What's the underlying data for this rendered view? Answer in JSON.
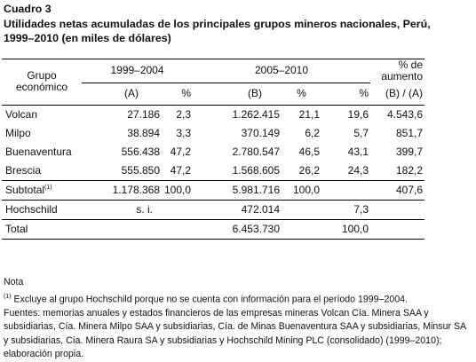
{
  "label": "Cuadro 3",
  "title": "Utilidades netas acumuladas de los principales grupos mineros nacionales, Perú, 1999–2010 (en miles de dólares)",
  "table": {
    "group_header": "Grupo económico",
    "periods": [
      "1999–2004",
      "2005–2010"
    ],
    "increase_header": "% de aumento",
    "columns": [
      "(A)",
      "%",
      "(B)",
      "%",
      "%",
      "(B) / (A)"
    ],
    "rows": [
      {
        "label": "Volcan",
        "cells": [
          "27.186",
          "2,3",
          "1.262.415",
          "21,1",
          "19,6",
          "4.543,6"
        ]
      },
      {
        "label": "Milpo",
        "cells": [
          "38.894",
          "3,3",
          "370.149",
          "6,2",
          "5,7",
          "851,7"
        ]
      },
      {
        "label": "Buenaventura",
        "cells": [
          "556.438",
          "47,2",
          "2.780.547",
          "46,5",
          "43,1",
          "399,7"
        ]
      },
      {
        "label": "Brescia",
        "cells": [
          "555.850",
          "47,2",
          "1.568.605",
          "26,2",
          "24,3",
          "182,2"
        ]
      },
      {
        "label": "Subtotal",
        "ref": "(1)",
        "cells": [
          "1.178.368",
          "100,0",
          "5.981.716",
          "100,0",
          null,
          "407,6"
        ]
      },
      {
        "label": "Hochschild",
        "cells": [
          "s. i.",
          null,
          "472.014",
          null,
          "7,3",
          null
        ]
      },
      {
        "label": "Total",
        "cells": [
          null,
          null,
          "6.453.730",
          null,
          "100,0",
          null
        ]
      }
    ]
  },
  "notes": {
    "heading": "Nota",
    "items": [
      {
        "ref": "(1)",
        "text": "Excluye al grupo Hochschild porque no se cuenta con información para el período 1999–2004."
      }
    ],
    "sources": "Fuentes: memorias anuales y estados financieros de las empresas mineras Volcan Cía. Minera SAA y subsidiarias, Cía. Minera Milpo SAA y subsidiarias, Cía. de Minas Buenaventura SAA y subsidiarias, Minsur SA y subsidiarias, Cía. Minera Raura SA y subsidiarias y Hochschild Mining PLC (consolidado) (1999–2010); elaboración propia."
  }
}
